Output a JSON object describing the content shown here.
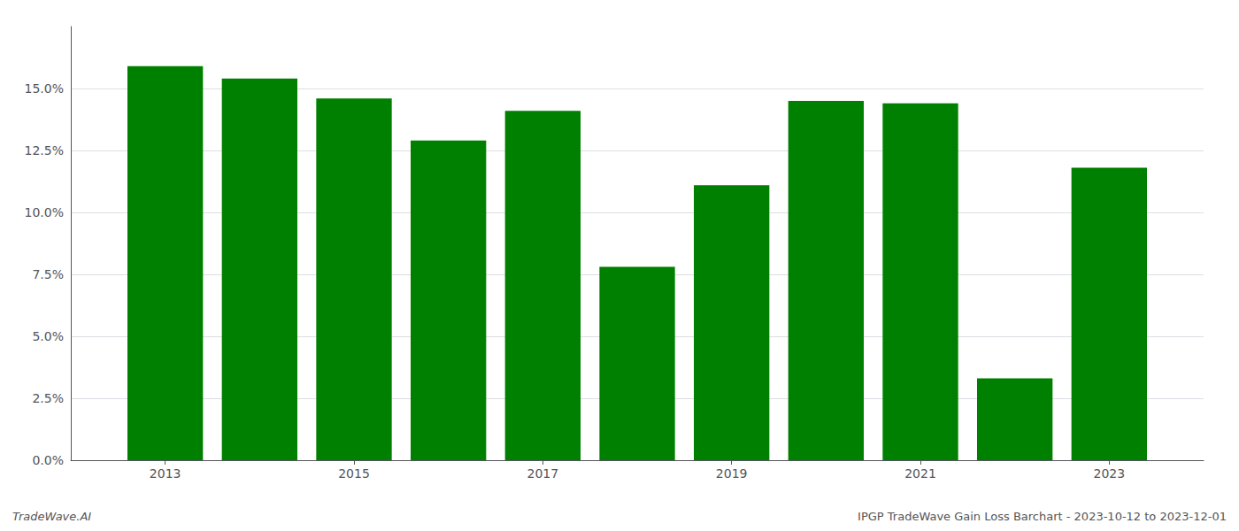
{
  "chart_data": {
    "type": "bar",
    "x": [
      2013,
      2014,
      2015,
      2016,
      2017,
      2018,
      2019,
      2020,
      2021,
      2022,
      2023
    ],
    "values": [
      0.159,
      0.154,
      0.146,
      0.129,
      0.141,
      0.078,
      0.111,
      0.145,
      0.144,
      0.033,
      0.118
    ],
    "color": "#008000",
    "xlim": [
      2012,
      2024
    ],
    "xticks": [
      2013,
      2015,
      2017,
      2019,
      2021,
      2023
    ],
    "ylim": [
      0,
      0.175
    ],
    "yticks": [
      {
        "value": 0.0,
        "label": "0.0%"
      },
      {
        "value": 0.025,
        "label": "2.5%"
      },
      {
        "value": 0.05,
        "label": "5.0%"
      },
      {
        "value": 0.075,
        "label": "7.5%"
      },
      {
        "value": 0.1,
        "label": "10.0%"
      },
      {
        "value": 0.125,
        "label": "12.5%"
      },
      {
        "value": 0.15,
        "label": "15.0%"
      }
    ],
    "grid": true,
    "annotations": [
      "TradeWave.AI",
      "IPGP TradeWave Gain Loss Barchart - 2023-10-12 to 2023-12-01"
    ]
  }
}
